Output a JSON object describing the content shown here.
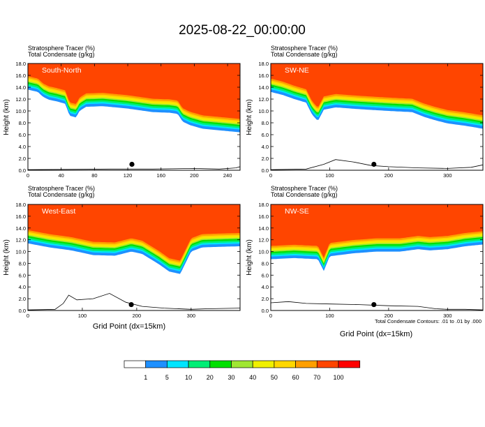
{
  "title": "2025-08-22_00:00:00",
  "panel_header": {
    "line1": "Stratosphere Tracer   (%)",
    "line2": "Total Condensate   (g/kg)"
  },
  "y_axis_label": "Height (km)",
  "x_axis_label": "Grid Point (dx=15km)",
  "contour_note": "Total Condensate Contours: .01 to .01 by .000",
  "colors": {
    "scale": [
      "#ffffff",
      "#1e90ff",
      "#00e5ff",
      "#00ee76",
      "#00e000",
      "#a0e632",
      "#f0f000",
      "#ffd700",
      "#ff9f00",
      "#ff4500",
      "#ff0000"
    ]
  },
  "colorbar": {
    "labels": [
      "1",
      "5",
      "10",
      "20",
      "30",
      "40",
      "50",
      "60",
      "70",
      "100"
    ]
  },
  "chart_data": [
    {
      "type": "heatmap",
      "panel_label": "South-North",
      "xlim": [
        0,
        255
      ],
      "x_ticks": [
        "0",
        "40",
        "80",
        "120",
        "160",
        "200",
        "240"
      ],
      "x_tick_values": [
        0,
        40,
        80,
        120,
        160,
        200,
        240
      ],
      "ylim": [
        0,
        18
      ],
      "y_ticks": [
        "0.0",
        "2.0",
        "4.0",
        "6.0",
        "8.0",
        "10.0",
        "12.0",
        "14.0",
        "16.0",
        "18.0"
      ],
      "tropopause_km": [
        [
          0,
          16.2
        ],
        [
          12,
          15.8
        ],
        [
          18,
          15.0
        ],
        [
          25,
          14.5
        ],
        [
          35,
          14.2
        ],
        [
          45,
          13.8
        ],
        [
          50,
          11.8
        ],
        [
          58,
          11.5
        ],
        [
          62,
          12.6
        ],
        [
          70,
          13.3
        ],
        [
          90,
          13.4
        ],
        [
          120,
          13.0
        ],
        [
          150,
          12.4
        ],
        [
          170,
          12.3
        ],
        [
          180,
          12.1
        ],
        [
          186,
          10.8
        ],
        [
          195,
          10.2
        ],
        [
          210,
          9.6
        ],
        [
          240,
          9.2
        ],
        [
          255,
          9.0
        ]
      ],
      "orography_km": [
        [
          0,
          0.1
        ],
        [
          60,
          0.15
        ],
        [
          100,
          0.2
        ],
        [
          150,
          0.2
        ],
        [
          200,
          0.3
        ],
        [
          230,
          0.2
        ],
        [
          250,
          0.4
        ],
        [
          255,
          0.6
        ]
      ],
      "marker": {
        "x": 125,
        "y": 1.0
      }
    },
    {
      "type": "heatmap",
      "panel_label": "SW-NE",
      "xlim": [
        0,
        360
      ],
      "x_ticks": [
        "0",
        "100",
        "200",
        "300"
      ],
      "x_tick_values": [
        0,
        100,
        200,
        300
      ],
      "ylim": [
        0,
        18
      ],
      "y_ticks": [
        "0.0",
        "2.0",
        "4.0",
        "6.0",
        "8.0",
        "10.0",
        "12.0",
        "14.0",
        "16.0",
        "18.0"
      ],
      "tropopause_km": [
        [
          0,
          15.8
        ],
        [
          20,
          15.3
        ],
        [
          40,
          14.6
        ],
        [
          60,
          14.0
        ],
        [
          70,
          12.0
        ],
        [
          80,
          10.9
        ],
        [
          90,
          12.8
        ],
        [
          110,
          13.2
        ],
        [
          150,
          12.9
        ],
        [
          200,
          12.6
        ],
        [
          240,
          12.4
        ],
        [
          260,
          11.6
        ],
        [
          280,
          11.0
        ],
        [
          300,
          10.5
        ],
        [
          330,
          10.1
        ],
        [
          360,
          9.6
        ]
      ],
      "orography_km": [
        [
          0,
          0.1
        ],
        [
          60,
          0.2
        ],
        [
          90,
          1.0
        ],
        [
          110,
          1.8
        ],
        [
          140,
          1.4
        ],
        [
          170,
          0.8
        ],
        [
          200,
          0.6
        ],
        [
          250,
          0.4
        ],
        [
          300,
          0.3
        ],
        [
          340,
          0.5
        ],
        [
          360,
          0.9
        ]
      ],
      "marker": {
        "x": 175,
        "y": 1.0
      }
    },
    {
      "type": "heatmap",
      "panel_label": "West-East",
      "xlim": [
        0,
        390
      ],
      "x_ticks": [
        "0",
        "100",
        "200",
        "300"
      ],
      "x_tick_values": [
        0,
        100,
        200,
        300
      ],
      "ylim": [
        0,
        18
      ],
      "y_ticks": [
        "0.0",
        "2.0",
        "4.0",
        "6.0",
        "8.0",
        "10.0",
        "12.0",
        "14.0",
        "16.0",
        "18.0"
      ],
      "tropopause_km": [
        [
          0,
          14.0
        ],
        [
          40,
          13.3
        ],
        [
          80,
          12.8
        ],
        [
          120,
          12.0
        ],
        [
          160,
          11.9
        ],
        [
          190,
          12.6
        ],
        [
          210,
          12.2
        ],
        [
          240,
          10.5
        ],
        [
          260,
          9.2
        ],
        [
          280,
          8.8
        ],
        [
          300,
          12.6
        ],
        [
          320,
          13.3
        ],
        [
          350,
          13.4
        ],
        [
          390,
          13.5
        ]
      ],
      "orography_km": [
        [
          0,
          0.1
        ],
        [
          50,
          0.2
        ],
        [
          65,
          1.2
        ],
        [
          75,
          2.6
        ],
        [
          90,
          1.8
        ],
        [
          120,
          2.0
        ],
        [
          150,
          2.9
        ],
        [
          180,
          1.4
        ],
        [
          210,
          0.7
        ],
        [
          250,
          0.4
        ],
        [
          300,
          0.2
        ],
        [
          330,
          0.3
        ],
        [
          390,
          0.4
        ]
      ],
      "marker": {
        "x": 190,
        "y": 1.0
      }
    },
    {
      "type": "heatmap",
      "panel_label": "NW-SE",
      "xlim": [
        0,
        360
      ],
      "x_ticks": [
        "0",
        "100",
        "200",
        "300"
      ],
      "x_tick_values": [
        0,
        100,
        200,
        300
      ],
      "ylim": [
        0,
        18
      ],
      "y_ticks": [
        "0.0",
        "2.0",
        "4.0",
        "6.0",
        "8.0",
        "10.0",
        "12.0",
        "14.0",
        "16.0",
        "18.0"
      ],
      "tropopause_km": [
        [
          0,
          11.3
        ],
        [
          40,
          11.5
        ],
        [
          80,
          11.3
        ],
        [
          90,
          9.3
        ],
        [
          100,
          11.8
        ],
        [
          140,
          12.3
        ],
        [
          180,
          12.6
        ],
        [
          220,
          12.6
        ],
        [
          250,
          13.0
        ],
        [
          270,
          12.8
        ],
        [
          300,
          13.0
        ],
        [
          330,
          13.5
        ],
        [
          360,
          13.8
        ]
      ],
      "orography_km": [
        [
          0,
          1.3
        ],
        [
          30,
          1.5
        ],
        [
          60,
          1.2
        ],
        [
          100,
          1.1
        ],
        [
          150,
          1.0
        ],
        [
          200,
          0.8
        ],
        [
          250,
          0.7
        ],
        [
          280,
          0.3
        ],
        [
          300,
          0.2
        ],
        [
          330,
          0.2
        ],
        [
          360,
          0.1
        ]
      ],
      "marker": {
        "x": 175,
        "y": 1.0
      }
    }
  ]
}
